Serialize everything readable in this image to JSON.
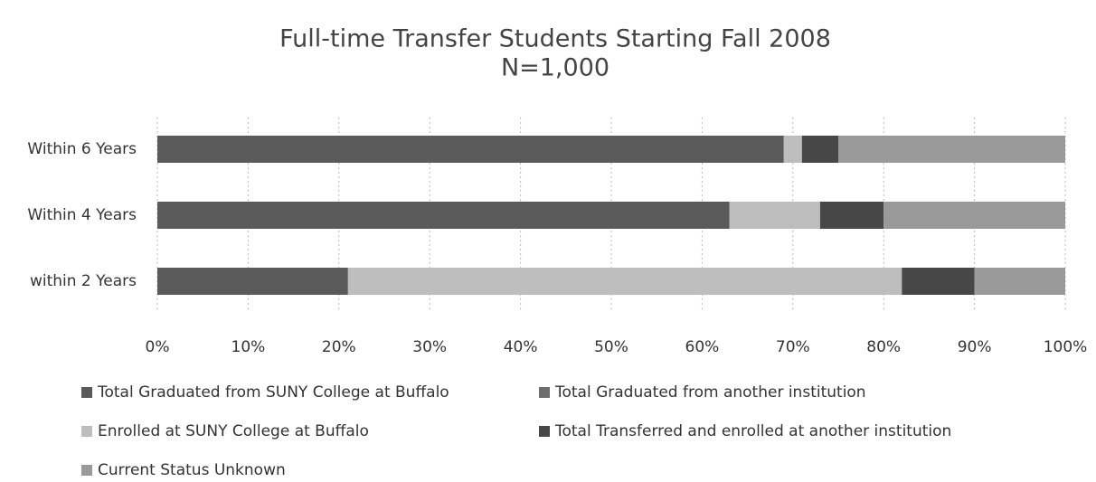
{
  "chart_data": {
    "type": "bar",
    "orientation": "horizontal",
    "stacked": true,
    "title": "Full-time Transfer Students Starting Fall 2008",
    "subtitle": "N=1,000",
    "categories": [
      "Within 6 Years",
      "Within 4 Years",
      "within 2 Years"
    ],
    "series": [
      {
        "name": "Total Graduated from SUNY College at Buffalo",
        "color": "#5a5a5a",
        "values": [
          69,
          63,
          21
        ]
      },
      {
        "name": "Total Graduated from another institution",
        "color": "#6e6e6e",
        "values": [
          0,
          0,
          0
        ]
      },
      {
        "name": "Enrolled at SUNY College at Buffalo",
        "color": "#bdbdbd",
        "values": [
          2,
          10,
          61
        ]
      },
      {
        "name": "Total Transferred and enrolled at another institution",
        "color": "#474747",
        "values": [
          4,
          7,
          8
        ]
      },
      {
        "name": "Current Status Unknown",
        "color": "#9a9a9a",
        "values": [
          25,
          20,
          10
        ]
      }
    ],
    "xlim": [
      0,
      100
    ],
    "xticks": [
      {
        "value": 0,
        "label": "0%"
      },
      {
        "value": 10,
        "label": "10%"
      },
      {
        "value": 20,
        "label": "20%"
      },
      {
        "value": 30,
        "label": "30%"
      },
      {
        "value": 40,
        "label": "40%"
      },
      {
        "value": 50,
        "label": "50%"
      },
      {
        "value": 60,
        "label": "60%"
      },
      {
        "value": 70,
        "label": "70%"
      },
      {
        "value": 80,
        "label": "80%"
      },
      {
        "value": 90,
        "label": "90%"
      },
      {
        "value": 100,
        "label": "100%"
      }
    ],
    "grid": true,
    "legend": "bottom"
  }
}
